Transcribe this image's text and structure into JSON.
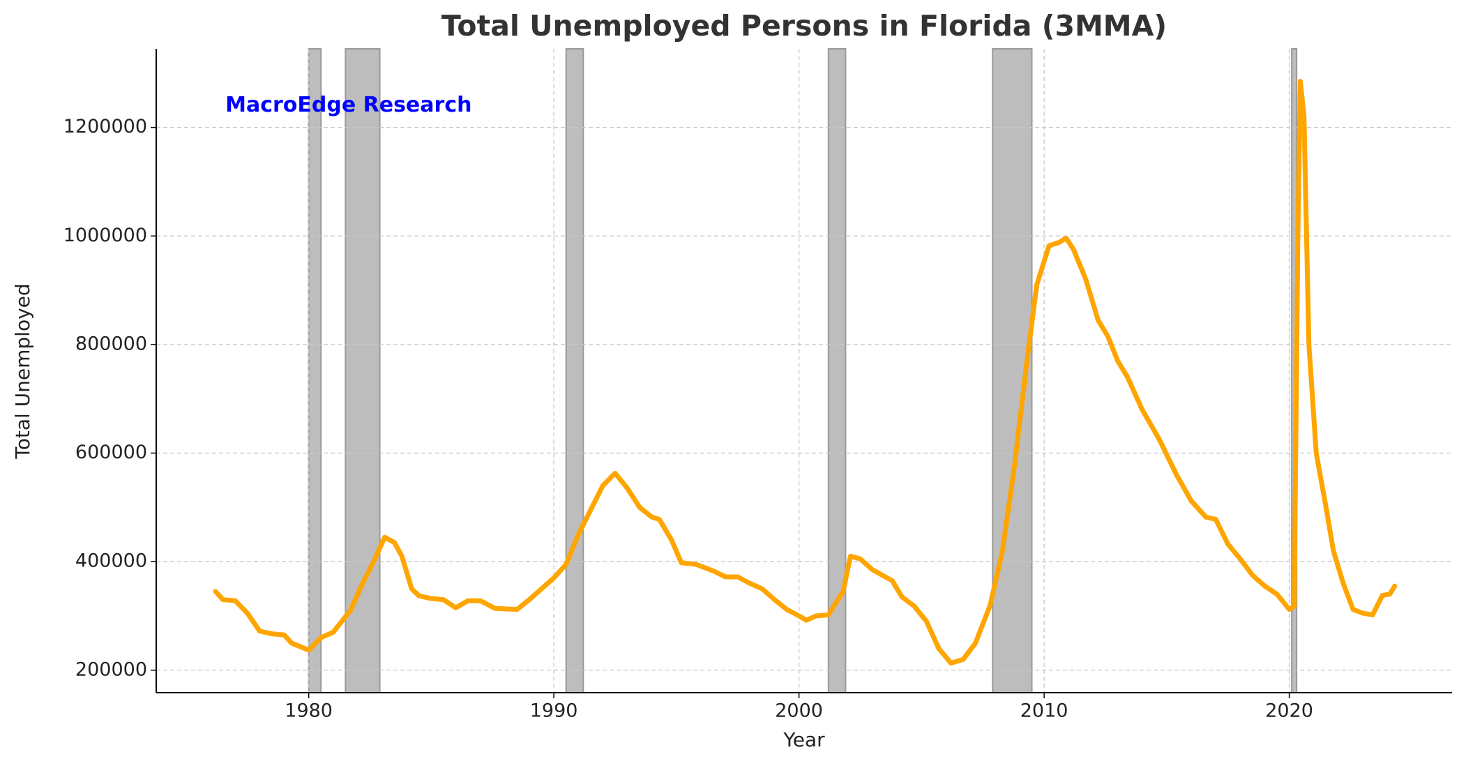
{
  "chart_data": {
    "type": "line",
    "title": "Total Unemployed Persons in Florida (3MMA)",
    "xlabel": "Year",
    "ylabel": "Total Unemployed",
    "annotation": {
      "text": "MacroEdge Research",
      "x": 1976.6,
      "y": 1240000,
      "color": "#0000ff"
    },
    "color": "#ffa500",
    "recession_color": "#bdbdbd",
    "recessions": [
      [
        1980.0,
        1980.5
      ],
      [
        1981.5,
        1982.9
      ],
      [
        1990.5,
        1991.2
      ],
      [
        2001.2,
        2001.9
      ],
      [
        2007.9,
        2009.5
      ],
      [
        2020.1,
        2020.3
      ]
    ],
    "x": [
      1976.2,
      1976.5,
      1977.0,
      1977.5,
      1978.0,
      1978.5,
      1979.0,
      1979.3,
      1980.0,
      1980.5,
      1981.0,
      1981.7,
      1982.2,
      1982.7,
      1983.1,
      1983.5,
      1983.8,
      1984.2,
      1984.5,
      1985.0,
      1985.5,
      1986.0,
      1986.5,
      1987.0,
      1987.6,
      1988.0,
      1988.5,
      1989.0,
      1990.0,
      1990.5,
      1991.0,
      1991.5,
      1992.0,
      1992.5,
      1993.0,
      1993.5,
      1994.0,
      1994.3,
      1994.8,
      1995.2,
      1995.8,
      1996.5,
      1997.0,
      1997.5,
      1998.0,
      1998.5,
      1999.0,
      1999.5,
      2000.0,
      2000.3,
      2000.7,
      2001.2,
      2001.8,
      2002.1,
      2002.5,
      2003.0,
      2003.8,
      2004.2,
      2004.7,
      2005.2,
      2005.7,
      2006.2,
      2006.7,
      2007.2,
      2007.8,
      2008.3,
      2008.8,
      2009.3,
      2009.7,
      2010.2,
      2010.6,
      2010.9,
      2011.2,
      2011.7,
      2012.2,
      2012.6,
      2013.0,
      2013.4,
      2014.0,
      2014.7,
      2015.4,
      2016.0,
      2016.6,
      2017.0,
      2017.5,
      2018.0,
      2018.5,
      2019.0,
      2019.5,
      2020.0,
      2020.2,
      2020.35,
      2020.45,
      2020.6,
      2020.8,
      2021.1,
      2021.5,
      2021.8,
      2022.2,
      2022.6,
      2023.0,
      2023.4,
      2023.8,
      2024.1,
      2024.3
    ],
    "values": [
      345000,
      330000,
      328000,
      305000,
      272000,
      267000,
      265000,
      250000,
      237000,
      260000,
      270000,
      310000,
      360000,
      405000,
      445000,
      435000,
      410000,
      350000,
      337000,
      332000,
      330000,
      315000,
      328000,
      328000,
      314000,
      313000,
      312000,
      330000,
      370000,
      395000,
      450000,
      495000,
      540000,
      563000,
      535000,
      500000,
      482000,
      478000,
      440000,
      398000,
      395000,
      383000,
      372000,
      372000,
      360000,
      350000,
      330000,
      312000,
      300000,
      292000,
      300000,
      302000,
      345000,
      410000,
      405000,
      385000,
      365000,
      335000,
      318000,
      290000,
      240000,
      213000,
      220000,
      250000,
      320000,
      420000,
      580000,
      770000,
      910000,
      982000,
      988000,
      996000,
      975000,
      920000,
      845000,
      815000,
      770000,
      740000,
      680000,
      625000,
      560000,
      512000,
      482000,
      478000,
      432000,
      405000,
      375000,
      355000,
      340000,
      312000,
      318000,
      1000000,
      1285000,
      1220000,
      800000,
      600000,
      500000,
      420000,
      360000,
      312000,
      305000,
      302000,
      338000,
      340000,
      355000
    ],
    "xlim": [
      1973.78,
      2026.64
    ],
    "ylim": [
      158600,
      1344800
    ],
    "xticks": [
      1980,
      1990,
      2000,
      2010,
      2020
    ],
    "yticks": [
      200000,
      400000,
      600000,
      800000,
      1000000,
      1200000
    ],
    "grid": true
  }
}
